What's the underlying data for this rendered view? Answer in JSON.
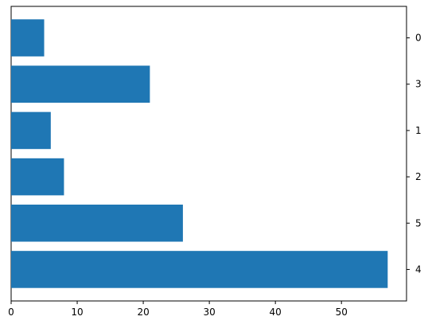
{
  "chart_data": {
    "type": "barh",
    "categories": [
      "0",
      "3",
      "1",
      "2",
      "5",
      "4"
    ],
    "values": [
      5,
      21,
      6,
      8,
      26,
      57
    ],
    "color": "#1f77b4",
    "xlim": [
      0,
      59.85
    ],
    "xticks": [
      0,
      10,
      20,
      30,
      40,
      50
    ],
    "y_axis_side": "right"
  }
}
